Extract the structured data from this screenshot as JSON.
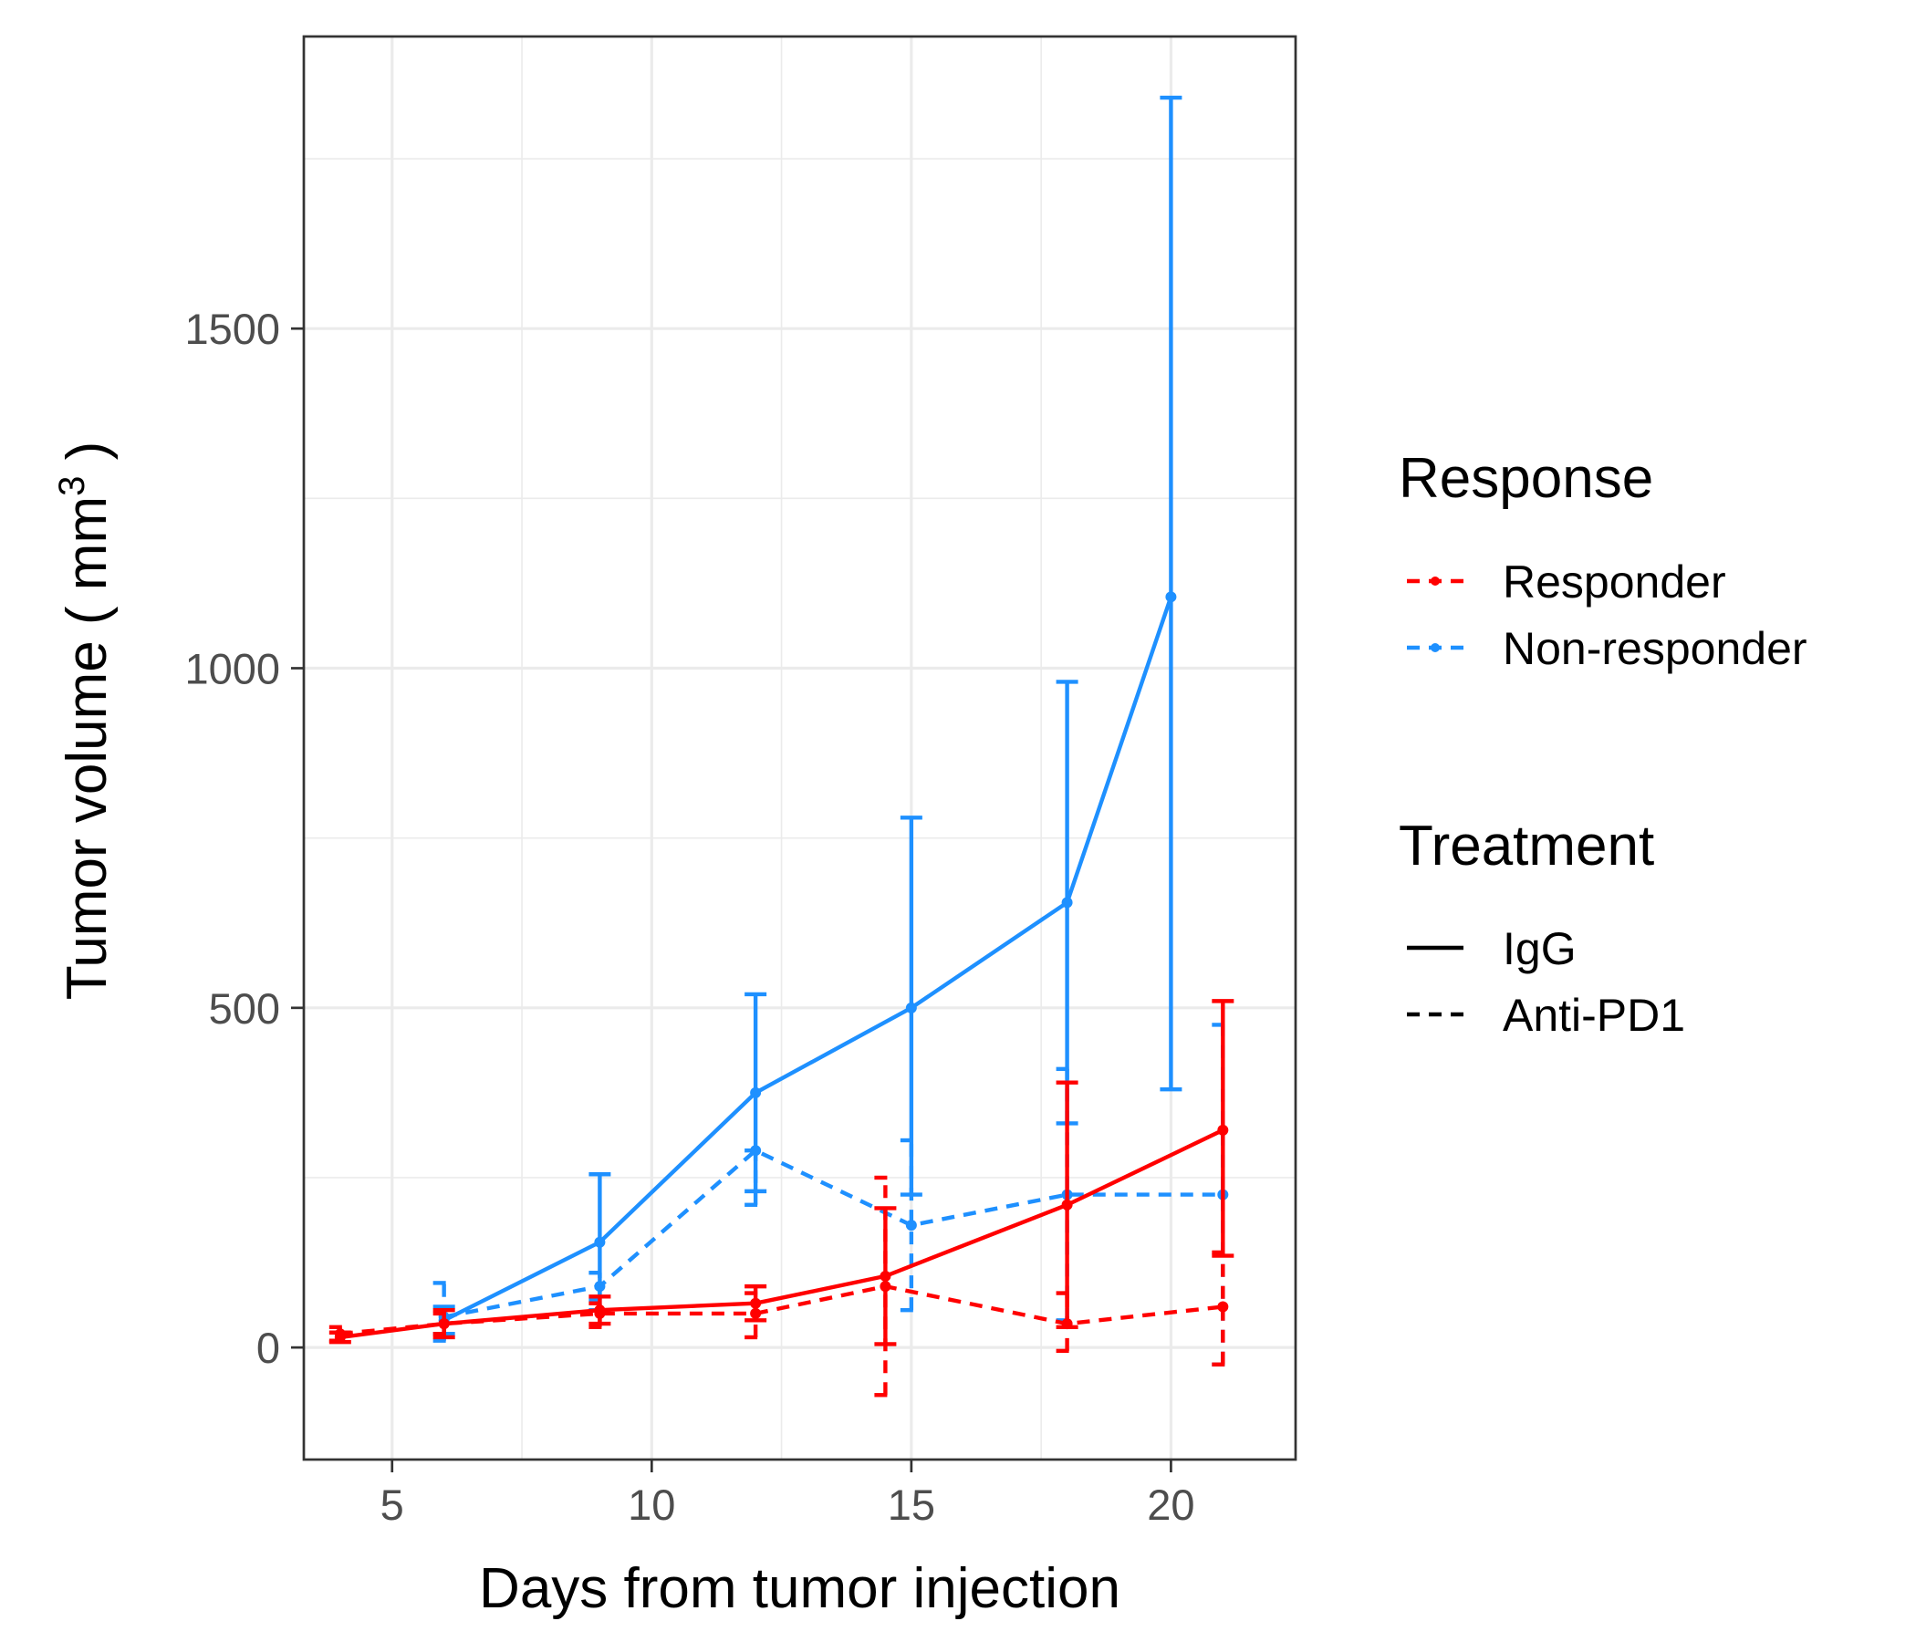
{
  "chart_data": {
    "type": "line",
    "title": "",
    "xlabel": "Days from tumor injection",
    "ylabel": "Tumor volume ( mm",
    "ylabel_superscript": "3",
    "ylabel_suffix": " )",
    "xlim": [
      3.3,
      22.4
    ],
    "ylim": [
      -165,
      1930
    ],
    "x_ticks": [
      5,
      10,
      15,
      20
    ],
    "y_ticks": [
      0,
      500,
      1000,
      1500
    ],
    "x_tick_labels": [
      "5",
      "10",
      "15",
      "20"
    ],
    "y_tick_labels": [
      "0",
      "500",
      "1000",
      "1500"
    ],
    "grid": true,
    "legend_position": "right",
    "legends": [
      {
        "title": "Response",
        "entries": [
          {
            "label": "Responder",
            "color": "#ff0000"
          },
          {
            "label": "Non-responder",
            "color": "#1e90ff"
          }
        ]
      },
      {
        "title": "Treatment",
        "entries": [
          {
            "label": "IgG",
            "linetype": "solid"
          },
          {
            "label": "Anti-PD1",
            "linetype": "dashed"
          }
        ]
      }
    ],
    "series": [
      {
        "response": "Non-responder",
        "treatment": "IgG",
        "color": "#1e90ff",
        "linetype": "solid",
        "points": [
          {
            "x": 6,
            "y": 40,
            "lo": 20,
            "hi": 60
          },
          {
            "x": 9,
            "y": 155,
            "lo": 55,
            "hi": 255
          },
          {
            "x": 12,
            "y": 375,
            "lo": 230,
            "hi": 520
          },
          {
            "x": 15,
            "y": 500,
            "lo": 225,
            "hi": 780
          },
          {
            "x": 18,
            "y": 655,
            "lo": 330,
            "hi": 980
          },
          {
            "x": 20,
            "y": 1105,
            "lo": 380,
            "hi": 1840
          }
        ]
      },
      {
        "response": "Non-responder",
        "treatment": "Anti-PD1",
        "color": "#1e90ff",
        "linetype": "dashed",
        "points": [
          {
            "x": 6,
            "y": 45,
            "lo": 10,
            "hi": 95
          },
          {
            "x": 9,
            "y": 90,
            "lo": 70,
            "hi": 110
          },
          {
            "x": 12,
            "y": 290,
            "lo": 210,
            "hi": 290
          },
          {
            "x": 15,
            "y": 180,
            "lo": 55,
            "hi": 305
          },
          {
            "x": 18,
            "y": 225,
            "lo": 40,
            "hi": 410
          },
          {
            "x": 21,
            "y": 225,
            "lo": -25,
            "hi": 475
          }
        ]
      },
      {
        "response": "Responder",
        "treatment": "IgG",
        "color": "#ff0000",
        "linetype": "solid",
        "points": [
          {
            "x": 4,
            "y": 15,
            "lo": 8,
            "hi": 22
          },
          {
            "x": 6,
            "y": 35,
            "lo": 15,
            "hi": 55
          },
          {
            "x": 9,
            "y": 55,
            "lo": 35,
            "hi": 75
          },
          {
            "x": 12,
            "y": 65,
            "lo": 40,
            "hi": 90
          },
          {
            "x": 14.5,
            "y": 105,
            "lo": 5,
            "hi": 205
          },
          {
            "x": 18,
            "y": 210,
            "lo": 30,
            "hi": 390
          },
          {
            "x": 21,
            "y": 320,
            "lo": 135,
            "hi": 510
          }
        ]
      },
      {
        "response": "Responder",
        "treatment": "Anti-PD1",
        "color": "#ff0000",
        "linetype": "dashed",
        "points": [
          {
            "x": 4,
            "y": 20,
            "lo": 10,
            "hi": 30
          },
          {
            "x": 6,
            "y": 35,
            "lo": 20,
            "hi": 50
          },
          {
            "x": 9,
            "y": 50,
            "lo": 30,
            "hi": 65
          },
          {
            "x": 12,
            "y": 50,
            "lo": 15,
            "hi": 80
          },
          {
            "x": 14.5,
            "y": 90,
            "lo": -70,
            "hi": 250
          },
          {
            "x": 18,
            "y": 35,
            "lo": -5,
            "hi": 80
          },
          {
            "x": 21,
            "y": 60,
            "lo": -25,
            "hi": 140
          }
        ]
      }
    ]
  }
}
